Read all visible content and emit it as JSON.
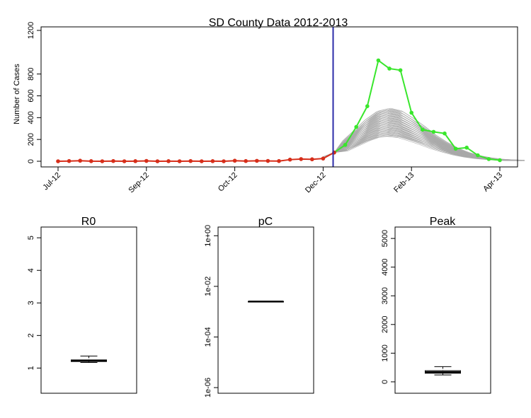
{
  "chart_data": [
    {
      "type": "line",
      "title": "SD County Data 2012-2013",
      "ylabel": "Number of Cases",
      "xlabel": "",
      "ylim": [
        0,
        1200
      ],
      "yticks": [
        0,
        200,
        400,
        600,
        800,
        1200
      ],
      "x_ticks": [
        {
          "label": "Jul-12",
          "week": 0
        },
        {
          "label": "Sep-12",
          "week": 8
        },
        {
          "label": "Oct-12",
          "week": 16
        },
        {
          "label": "Dec-12",
          "week": 24
        },
        {
          "label": "Feb-13",
          "week": 32
        },
        {
          "label": "Apr-13",
          "week": 40
        }
      ],
      "xlim_weeks": [
        -1,
        42
      ],
      "forecast_start_week": 25,
      "grid": false,
      "colors": {
        "observed": "#d62e1a",
        "actual": "#39e62c",
        "ensemble": "#a8a8a8",
        "divider": "#2c2ca8"
      },
      "series": [
        {
          "role": "observed",
          "x_weeks": [
            0,
            1,
            2,
            3,
            4,
            5,
            6,
            7,
            8,
            9,
            10,
            11,
            12,
            13,
            14,
            15,
            16,
            17,
            18,
            19,
            20,
            21,
            22,
            23,
            24,
            25
          ],
          "values": [
            0,
            2,
            5,
            1,
            0,
            2,
            0,
            1,
            3,
            0,
            1,
            0,
            2,
            0,
            1,
            0,
            5,
            2,
            4,
            3,
            2,
            15,
            20,
            18,
            25,
            80
          ]
        },
        {
          "role": "actual",
          "x_weeks": [
            25,
            26,
            27,
            28,
            29,
            30,
            31,
            32,
            33,
            34,
            35,
            36,
            37,
            38,
            39,
            40
          ],
          "values": [
            80,
            150,
            315,
            505,
            925,
            850,
            835,
            445,
            290,
            270,
            255,
            115,
            125,
            55,
            20,
            10
          ]
        },
        {
          "role": "ensemble",
          "x_weeks": [
            24,
            25,
            26,
            27,
            28,
            29,
            30,
            31,
            32,
            33,
            34,
            35,
            36,
            37,
            38,
            39,
            40,
            41,
            42
          ],
          "values": [
            40,
            80,
            120,
            180,
            240,
            285,
            300,
            285,
            245,
            200,
            150,
            110,
            75,
            50,
            32,
            20,
            12,
            8,
            6
          ],
          "members": 60,
          "scale_range": [
            0.76,
            1.62
          ]
        }
      ]
    },
    {
      "type": "box",
      "title": "R0",
      "ylim": [
        0.4,
        5.2
      ],
      "yticks": [
        1,
        2,
        3,
        4,
        5
      ],
      "tick_labels": [
        "1",
        "2",
        "3",
        "4",
        "5"
      ],
      "box": {
        "min": 1.17,
        "q1": 1.2,
        "median": 1.23,
        "q3": 1.25,
        "max": 1.37
      }
    },
    {
      "type": "box",
      "title": "pC",
      "scale": "log",
      "ylim": [
        1e-06,
        1.5
      ],
      "yticks": [
        1e-06,
        0.0001,
        0.01,
        1
      ],
      "tick_labels": [
        "1e-06",
        "1e-04",
        "1e-02",
        "1e+00"
      ],
      "box": {
        "min": 0.0025,
        "q1": 0.0025,
        "median": 0.0025,
        "q3": 0.0025,
        "max": 0.0025
      }
    },
    {
      "type": "box",
      "title": "Peak",
      "ylim": [
        -200,
        5250
      ],
      "yticks": [
        0,
        1000,
        2000,
        3000,
        4000,
        5000
      ],
      "tick_labels": [
        "0",
        "1000",
        "2000",
        "3000",
        "4000",
        "5000"
      ],
      "box": {
        "min": 240,
        "q1": 300,
        "median": 340,
        "q3": 390,
        "max": 530
      }
    }
  ]
}
